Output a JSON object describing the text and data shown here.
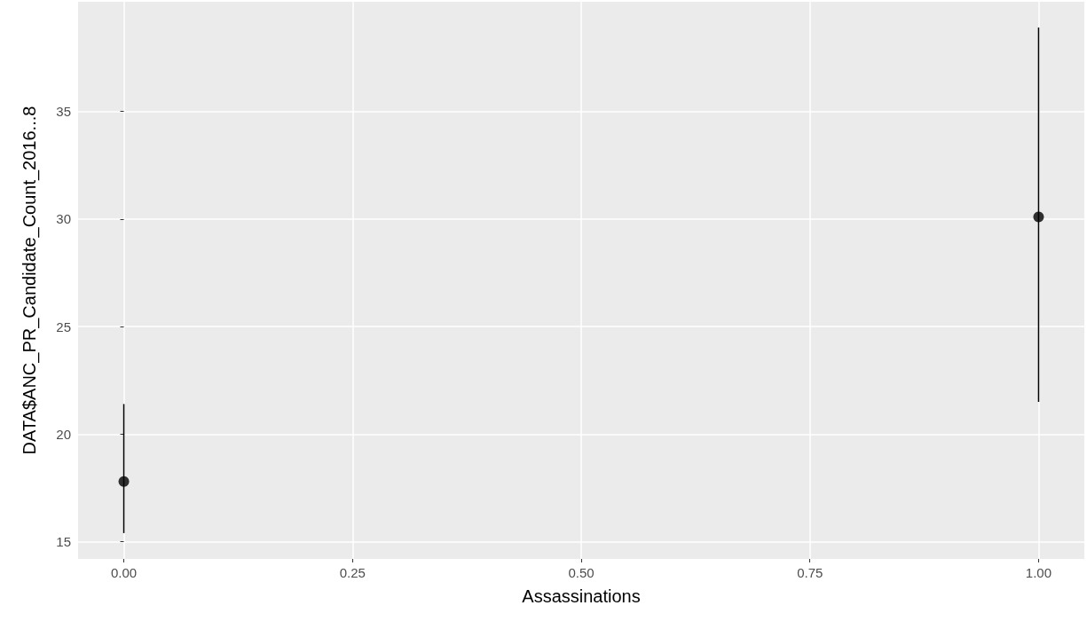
{
  "chart_data": {
    "type": "scatter",
    "xlabel": "Assassinations",
    "ylabel": "DATA$ANC_PR_Candidate_Count_2016...8",
    "x": [
      0,
      1
    ],
    "series": [
      {
        "color": "#000000",
        "values": [
          17.8,
          30.1
        ],
        "errors": [
          [
            15.4,
            21.4
          ],
          [
            21.5,
            38.9
          ]
        ]
      }
    ],
    "xlim": [
      -0.05,
      1.05
    ],
    "xticks": [
      {
        "value": 0,
        "label": "0.00"
      },
      {
        "value": 0.25,
        "label": "0.25"
      },
      {
        "value": 0.5,
        "label": "0.50"
      },
      {
        "value": 0.75,
        "label": "0.75"
      },
      {
        "value": 1,
        "label": "1.00"
      }
    ],
    "ylim": [
      14.2,
      40.1
    ],
    "yticks": [
      15,
      20,
      25,
      30,
      35
    ],
    "grid": true,
    "marker": "circle"
  }
}
